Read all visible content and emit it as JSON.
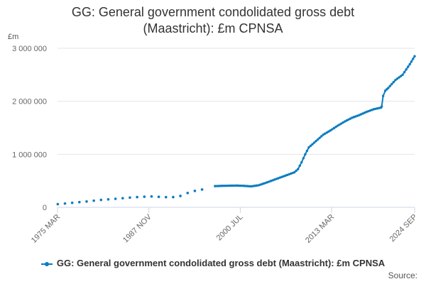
{
  "chart_data": {
    "type": "line",
    "title_line1": "GG: General government condolidated gross debt",
    "title_line2": "(Maastricht): £m CPNSA",
    "ylabel": "£m",
    "ylim": [
      0,
      3000000
    ],
    "yticks": [
      0,
      1000000,
      2000000,
      3000000
    ],
    "ytick_labels": [
      "0",
      "1 000 000",
      "2 000 000",
      "3 000 000"
    ],
    "xlim": [
      1975.167,
      2024.667
    ],
    "xticks": [
      1975.167,
      1987.833,
      2000.5,
      2013.167,
      2024.667
    ],
    "xtick_labels": [
      "1975 MAR",
      "1987 NOV",
      "2000 JUL",
      "2013 MAR",
      "2024 SEP"
    ],
    "grid": true,
    "legend_label": "GG: General government condolidated gross debt (Maastricht): £m CPNSA",
    "legend_position": "bottom",
    "color": "#0a7cc0",
    "annual_points": {
      "x": [
        1975.2,
        1976.2,
        1977.2,
        1978.2,
        1979.2,
        1980.2,
        1981.2,
        1982.2,
        1983.2,
        1984.2,
        1985.2,
        1986.2,
        1987.2,
        1988.2,
        1989.2,
        1990.2,
        1991.2,
        1992.2,
        1993.2,
        1994.2,
        1995.2
      ],
      "y": [
        60000,
        72000,
        85000,
        98000,
        110000,
        125000,
        140000,
        150000,
        160000,
        172000,
        183000,
        193000,
        200000,
        205000,
        198000,
        192000,
        193000,
        215000,
        270000,
        310000,
        335000
      ]
    },
    "quarterly_anchors": {
      "x": [
        1997.0,
        1998.0,
        1999.0,
        2000.0,
        2001.0,
        2002.0,
        2003.0,
        2004.0,
        2005.0,
        2006.0,
        2007.0,
        2008.0,
        2008.5,
        2009.0,
        2009.5,
        2010.0,
        2011.0,
        2012.0,
        2013.0,
        2014.0,
        2015.0,
        2016.0,
        2017.0,
        2018.0,
        2019.0,
        2020.0,
        2020.1,
        2020.3,
        2020.6,
        2021.0,
        2022.0,
        2023.0,
        2024.0,
        2024.667
      ],
      "y": [
        400000,
        405000,
        408000,
        410000,
        405000,
        395000,
        415000,
        460000,
        510000,
        560000,
        610000,
        660000,
        720000,
        850000,
        1000000,
        1130000,
        1250000,
        1370000,
        1450000,
        1540000,
        1620000,
        1690000,
        1740000,
        1800000,
        1850000,
        1880000,
        1900000,
        2100000,
        2200000,
        2250000,
        2400000,
        2500000,
        2700000,
        2850000
      ]
    }
  }
}
